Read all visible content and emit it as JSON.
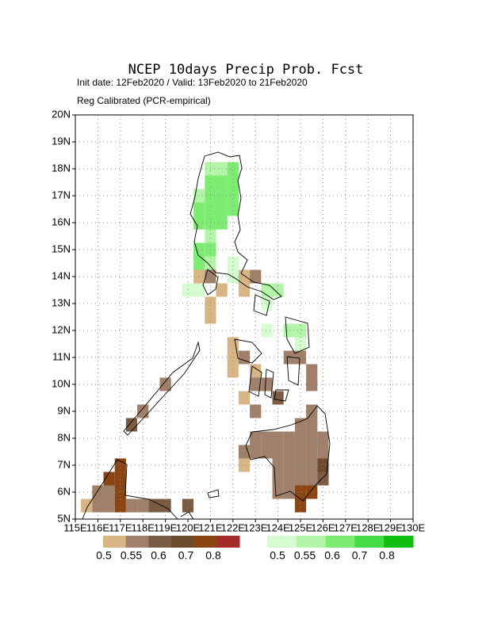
{
  "map": {
    "title": "NCEP 10days Precip Prob. Fcst",
    "subtitle": "Init date: 12Feb2020 / Valid: 13Feb2020 to 21Feb2020",
    "method": "Reg Calibrated (PCR-empirical)",
    "xlim": [
      115,
      130
    ],
    "ylim": [
      5,
      20
    ],
    "xticks": [
      {
        "value": 115,
        "label": "115E"
      },
      {
        "value": 116,
        "label": "116E"
      },
      {
        "value": 117,
        "label": "117E"
      },
      {
        "value": 118,
        "label": "118E"
      },
      {
        "value": 119,
        "label": "119E"
      },
      {
        "value": 120,
        "label": "120E"
      },
      {
        "value": 121,
        "label": "121E"
      },
      {
        "value": 122,
        "label": "122E"
      },
      {
        "value": 123,
        "label": "123E"
      },
      {
        "value": 124,
        "label": "124E"
      },
      {
        "value": 125,
        "label": "125E"
      },
      {
        "value": 126,
        "label": "126E"
      },
      {
        "value": 127,
        "label": "127E"
      },
      {
        "value": 128,
        "label": "128E"
      },
      {
        "value": 129,
        "label": "129E"
      },
      {
        "value": 130,
        "label": "130E"
      }
    ],
    "yticks": [
      {
        "value": 5,
        "label": "5N"
      },
      {
        "value": 6,
        "label": "6N"
      },
      {
        "value": 7,
        "label": "7N"
      },
      {
        "value": 8,
        "label": "8N"
      },
      {
        "value": 9,
        "label": "9N"
      },
      {
        "value": 10,
        "label": "10N"
      },
      {
        "value": 11,
        "label": "11N"
      },
      {
        "value": 12,
        "label": "12N"
      },
      {
        "value": 13,
        "label": "13N"
      },
      {
        "value": 14,
        "label": "14N"
      },
      {
        "value": 15,
        "label": "15N"
      },
      {
        "value": 16,
        "label": "16N"
      },
      {
        "value": 17,
        "label": "17N"
      },
      {
        "value": 18,
        "label": "18N"
      },
      {
        "value": 19,
        "label": "19N"
      },
      {
        "value": 20,
        "label": "20N"
      }
    ],
    "grid": true,
    "colorbars": [
      {
        "colors": [
          "#d8b584",
          "#a0806a",
          "#7a5c44",
          "#6b4a2e",
          "#8b4513",
          "#a52a2a"
        ],
        "levels": [
          0.5,
          0.55,
          0.6,
          0.7,
          0.8
        ]
      },
      {
        "colors": [
          "#d4fcd0",
          "#b4f4a8",
          "#7eec72",
          "#44dc44",
          "#10c010"
        ],
        "levels": [
          0.5,
          0.55,
          0.6,
          0.7,
          0.8
        ]
      }
    ],
    "cells": [
      {
        "lon": 121,
        "lat": 18,
        "bar": 1,
        "level": 1
      },
      {
        "lon": 121.5,
        "lat": 18,
        "bar": 1,
        "level": 1
      },
      {
        "lon": 122,
        "lat": 18,
        "bar": 1,
        "level": 2
      },
      {
        "lon": 121,
        "lat": 17.5,
        "bar": 1,
        "level": 2
      },
      {
        "lon": 121.5,
        "lat": 17.5,
        "bar": 1,
        "level": 2
      },
      {
        "lon": 122,
        "lat": 17.5,
        "bar": 1,
        "level": 2
      },
      {
        "lon": 120.5,
        "lat": 17,
        "bar": 1,
        "level": 1
      },
      {
        "lon": 121,
        "lat": 17,
        "bar": 1,
        "level": 2
      },
      {
        "lon": 121.5,
        "lat": 17,
        "bar": 1,
        "level": 2
      },
      {
        "lon": 122,
        "lat": 17,
        "bar": 1,
        "level": 2
      },
      {
        "lon": 120.5,
        "lat": 16.5,
        "bar": 1,
        "level": 2
      },
      {
        "lon": 121,
        "lat": 16.5,
        "bar": 1,
        "level": 2
      },
      {
        "lon": 121.5,
        "lat": 16.5,
        "bar": 1,
        "level": 2
      },
      {
        "lon": 122,
        "lat": 16.5,
        "bar": 1,
        "level": 2
      },
      {
        "lon": 120.5,
        "lat": 16,
        "bar": 1,
        "level": 2
      },
      {
        "lon": 121,
        "lat": 16,
        "bar": 1,
        "level": 2
      },
      {
        "lon": 121.5,
        "lat": 16,
        "bar": 1,
        "level": 2
      },
      {
        "lon": 121,
        "lat": 15.5,
        "bar": 1,
        "level": 1
      },
      {
        "lon": 120.5,
        "lat": 15,
        "bar": 1,
        "level": 2
      },
      {
        "lon": 121,
        "lat": 15,
        "bar": 1,
        "level": 2
      },
      {
        "lon": 120.5,
        "lat": 14.5,
        "bar": 1,
        "level": 2
      },
      {
        "lon": 121,
        "lat": 14.5,
        "bar": 1,
        "level": 1
      },
      {
        "lon": 122,
        "lat": 14.5,
        "bar": 1,
        "level": 0
      },
      {
        "lon": 122,
        "lat": 14,
        "bar": 1,
        "level": 0
      },
      {
        "lon": 120,
        "lat": 13.5,
        "bar": 1,
        "level": 0
      },
      {
        "lon": 120.5,
        "lat": 13.5,
        "bar": 1,
        "level": 0
      },
      {
        "lon": 123.5,
        "lat": 13.5,
        "bar": 1,
        "level": 1
      },
      {
        "lon": 124,
        "lat": 13.5,
        "bar": 1,
        "level": 1
      },
      {
        "lon": 123.5,
        "lat": 13,
        "bar": 1,
        "level": 0
      },
      {
        "lon": 124.5,
        "lat": 12,
        "bar": 1,
        "level": 1
      },
      {
        "lon": 125,
        "lat": 12,
        "bar": 1,
        "level": 1
      },
      {
        "lon": 123.5,
        "lat": 12,
        "bar": 1,
        "level": 0
      },
      {
        "lon": 125,
        "lat": 11.5,
        "bar": 1,
        "level": 0
      },
      {
        "lon": 120.5,
        "lat": 14,
        "bar": 0,
        "level": 0
      },
      {
        "lon": 121,
        "lat": 14,
        "bar": 0,
        "level": 1
      },
      {
        "lon": 121.5,
        "lat": 13.5,
        "bar": 0,
        "level": 0
      },
      {
        "lon": 122.5,
        "lat": 14,
        "bar": 0,
        "level": 0
      },
      {
        "lon": 123,
        "lat": 14,
        "bar": 0,
        "level": 1
      },
      {
        "lon": 122.5,
        "lat": 13.5,
        "bar": 0,
        "level": 0
      },
      {
        "lon": 121,
        "lat": 13,
        "bar": 0,
        "level": 0
      },
      {
        "lon": 121,
        "lat": 12.5,
        "bar": 0,
        "level": 0
      },
      {
        "lon": 122,
        "lat": 11.5,
        "bar": 0,
        "level": 0
      },
      {
        "lon": 122,
        "lat": 11,
        "bar": 0,
        "level": 0
      },
      {
        "lon": 122.5,
        "lat": 11,
        "bar": 0,
        "level": 1
      },
      {
        "lon": 122,
        "lat": 10.5,
        "bar": 0,
        "level": 0
      },
      {
        "lon": 123,
        "lat": 10.5,
        "bar": 0,
        "level": 0
      },
      {
        "lon": 123,
        "lat": 10,
        "bar": 0,
        "level": 1
      },
      {
        "lon": 123.5,
        "lat": 10,
        "bar": 0,
        "level": 1
      },
      {
        "lon": 122.5,
        "lat": 9.5,
        "bar": 0,
        "level": 0
      },
      {
        "lon": 123,
        "lat": 9,
        "bar": 0,
        "level": 1
      },
      {
        "lon": 124,
        "lat": 9.5,
        "bar": 0,
        "level": 2
      },
      {
        "lon": 124.5,
        "lat": 11,
        "bar": 0,
        "level": 1
      },
      {
        "lon": 125,
        "lat": 11,
        "bar": 0,
        "level": 1
      },
      {
        "lon": 125.5,
        "lat": 10.5,
        "bar": 0,
        "level": 1
      },
      {
        "lon": 125.5,
        "lat": 10,
        "bar": 0,
        "level": 1
      },
      {
        "lon": 125.5,
        "lat": 9,
        "bar": 0,
        "level": 1
      },
      {
        "lon": 125,
        "lat": 8.5,
        "bar": 0,
        "level": 1
      },
      {
        "lon": 125.5,
        "lat": 8.5,
        "bar": 0,
        "level": 1
      },
      {
        "lon": 123,
        "lat": 8,
        "bar": 0,
        "level": 1
      },
      {
        "lon": 123.5,
        "lat": 8,
        "bar": 0,
        "level": 1
      },
      {
        "lon": 124,
        "lat": 8,
        "bar": 0,
        "level": 1
      },
      {
        "lon": 124.5,
        "lat": 8,
        "bar": 0,
        "level": 1
      },
      {
        "lon": 125,
        "lat": 8,
        "bar": 0,
        "level": 1
      },
      {
        "lon": 125.5,
        "lat": 8,
        "bar": 0,
        "level": 1
      },
      {
        "lon": 126,
        "lat": 8,
        "bar": 0,
        "level": 1
      },
      {
        "lon": 123,
        "lat": 7.5,
        "bar": 0,
        "level": 1
      },
      {
        "lon": 123.5,
        "lat": 7.5,
        "bar": 0,
        "level": 1
      },
      {
        "lon": 124,
        "lat": 7.5,
        "bar": 0,
        "level": 1
      },
      {
        "lon": 124.5,
        "lat": 7.5,
        "bar": 0,
        "level": 1
      },
      {
        "lon": 125,
        "lat": 7.5,
        "bar": 0,
        "level": 1
      },
      {
        "lon": 125.5,
        "lat": 7.5,
        "bar": 0,
        "level": 1
      },
      {
        "lon": 126,
        "lat": 7.5,
        "bar": 0,
        "level": 1
      },
      {
        "lon": 124,
        "lat": 7,
        "bar": 0,
        "level": 1
      },
      {
        "lon": 124.5,
        "lat": 7,
        "bar": 0,
        "level": 1
      },
      {
        "lon": 125,
        "lat": 7,
        "bar": 0,
        "level": 1
      },
      {
        "lon": 125.5,
        "lat": 7,
        "bar": 0,
        "level": 1
      },
      {
        "lon": 126,
        "lat": 7,
        "bar": 0,
        "level": 3
      },
      {
        "lon": 124,
        "lat": 6.5,
        "bar": 0,
        "level": 1
      },
      {
        "lon": 124.5,
        "lat": 6.5,
        "bar": 0,
        "level": 1
      },
      {
        "lon": 125,
        "lat": 6.5,
        "bar": 0,
        "level": 1
      },
      {
        "lon": 125.5,
        "lat": 6.5,
        "bar": 0,
        "level": 1
      },
      {
        "lon": 126,
        "lat": 6.5,
        "bar": 0,
        "level": 2
      },
      {
        "lon": 124,
        "lat": 6,
        "bar": 0,
        "level": 1
      },
      {
        "lon": 124.5,
        "lat": 6,
        "bar": 0,
        "level": 1
      },
      {
        "lon": 125,
        "lat": 6,
        "bar": 0,
        "level": 4
      },
      {
        "lon": 125.5,
        "lat": 6,
        "bar": 0,
        "level": 4
      },
      {
        "lon": 125,
        "lat": 5.5,
        "bar": 0,
        "level": 4
      },
      {
        "lon": 122.5,
        "lat": 7,
        "bar": 0,
        "level": 0
      },
      {
        "lon": 122.5,
        "lat": 7.5,
        "bar": 0,
        "level": 1
      },
      {
        "lon": 117.5,
        "lat": 8.5,
        "bar": 0,
        "level": 2
      },
      {
        "lon": 118,
        "lat": 9,
        "bar": 0,
        "level": 1
      },
      {
        "lon": 119,
        "lat": 10,
        "bar": 0,
        "level": 1
      },
      {
        "lon": 116,
        "lat": 6,
        "bar": 0,
        "level": 1
      },
      {
        "lon": 116.5,
        "lat": 6.5,
        "bar": 0,
        "level": 4
      },
      {
        "lon": 116.5,
        "lat": 6,
        "bar": 0,
        "level": 1
      },
      {
        "lon": 117,
        "lat": 7,
        "bar": 0,
        "level": 4
      },
      {
        "lon": 117,
        "lat": 6.5,
        "bar": 0,
        "level": 4
      },
      {
        "lon": 117,
        "lat": 6,
        "bar": 0,
        "level": 4
      },
      {
        "lon": 117,
        "lat": 5.5,
        "bar": 0,
        "level": 4
      },
      {
        "lon": 116,
        "lat": 5.5,
        "bar": 0,
        "level": 1
      },
      {
        "lon": 116.5,
        "lat": 5.5,
        "bar": 0,
        "level": 1
      },
      {
        "lon": 115.5,
        "lat": 5.5,
        "bar": 0,
        "level": 0
      },
      {
        "lon": 117.5,
        "lat": 5.5,
        "bar": 0,
        "level": 1
      },
      {
        "lon": 118,
        "lat": 5.5,
        "bar": 0,
        "level": 1
      },
      {
        "lon": 118.5,
        "lat": 5.5,
        "bar": 0,
        "level": 2
      },
      {
        "lon": 119,
        "lat": 5.5,
        "bar": 0,
        "level": 2
      },
      {
        "lon": 120,
        "lat": 5.5,
        "bar": 0,
        "level": 2
      }
    ]
  }
}
